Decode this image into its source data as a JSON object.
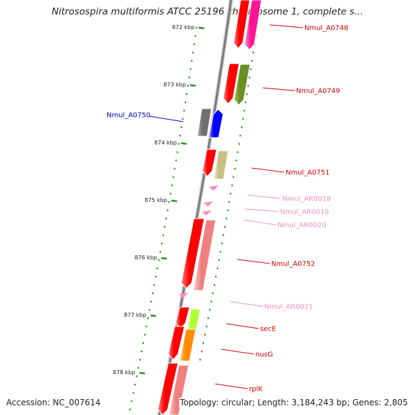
{
  "title": "Nitrosospira multiformis ATCC 25196 chromosome 1, complete s...",
  "footer": {
    "accession": "Accession: NC_007614",
    "topology": "Topology: circular; Length: 3,184,243 bp; Genes: 2,805"
  },
  "colors": {
    "backbone": "#7a7a7a",
    "tick": "#2a8a2a",
    "red_gene": "#e00000",
    "blue_gene": "#0000cc",
    "label_red": "#cc0000",
    "label_blue": "#0000cc",
    "label_pink": "#ef8fbf"
  },
  "ticks": [
    "872 kbp",
    "873 kbp",
    "874 kbp",
    "875 kbp",
    "876 kbp",
    "877 kbp",
    "878 kbp"
  ],
  "genes": [
    {
      "name": "Nmul_A0748",
      "color_key": "label_red"
    },
    {
      "name": "Nmul_A0749",
      "color_key": "label_red"
    },
    {
      "name": "Nmul_A0750",
      "color_key": "label_blue"
    },
    {
      "name": "Nmul_A0751",
      "color_key": "label_red"
    },
    {
      "name": "Nmul_AR0018",
      "color_key": "label_pink"
    },
    {
      "name": "Nmul_AR0019",
      "color_key": "label_pink"
    },
    {
      "name": "Nmul_AR0020",
      "color_key": "label_pink"
    },
    {
      "name": "Nmul_A0752",
      "color_key": "label_red"
    },
    {
      "name": "Nmul_AR0021",
      "color_key": "label_pink"
    },
    {
      "name": "secE",
      "color_key": "label_red"
    },
    {
      "name": "nusG",
      "color_key": "label_red"
    },
    {
      "name": "rplK",
      "color_key": "label_red"
    }
  ]
}
